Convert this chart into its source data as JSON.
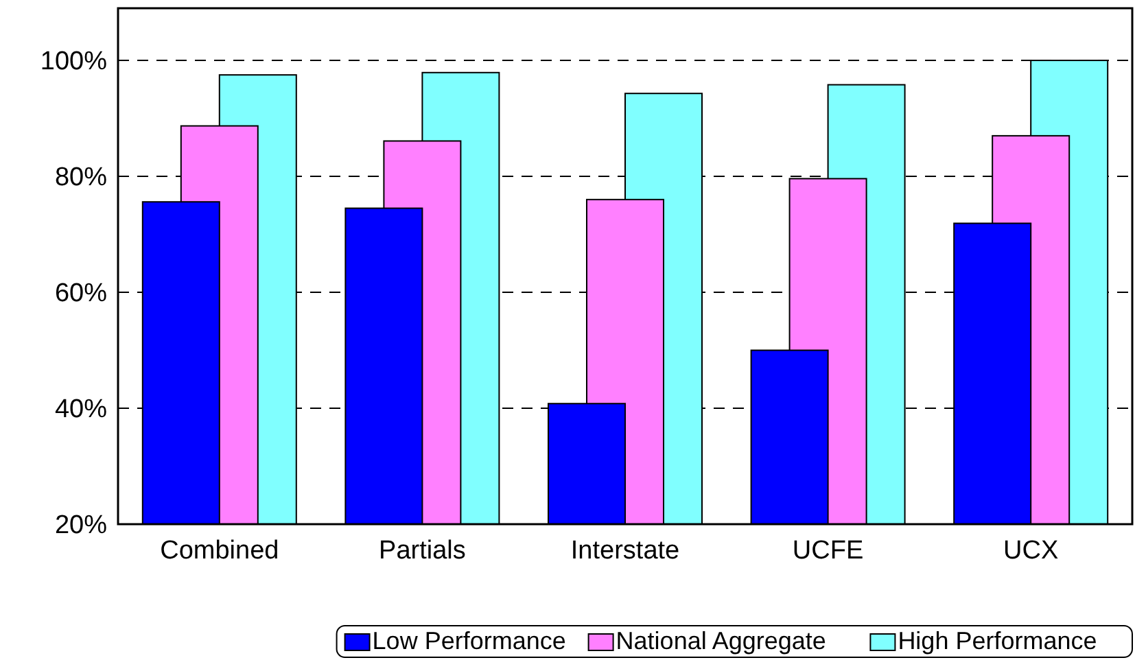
{
  "chart_data": {
    "type": "bar",
    "categories": [
      "Combined",
      "Partials",
      "Interstate",
      "UCFE",
      "UCX"
    ],
    "series": [
      {
        "name": "Low Performance",
        "color": "#0000ff",
        "values": [
          75.6,
          74.5,
          40.8,
          50.0,
          71.9
        ]
      },
      {
        "name": "National Aggregate",
        "color": "#ff80ff",
        "values": [
          88.7,
          86.1,
          76.0,
          79.6,
          87.0
        ]
      },
      {
        "name": "High Performance",
        "color": "#80ffff",
        "values": [
          97.5,
          97.9,
          94.3,
          95.8,
          100.0
        ]
      }
    ],
    "ylim": [
      20,
      109
    ],
    "yticks": [
      {
        "value": 20,
        "label": "20%"
      },
      {
        "value": 40,
        "label": "40%"
      },
      {
        "value": 60,
        "label": "60%"
      },
      {
        "value": 80,
        "label": "80%"
      },
      {
        "value": 100,
        "label": "100%"
      }
    ],
    "grid": "y",
    "legend": "bottom"
  }
}
